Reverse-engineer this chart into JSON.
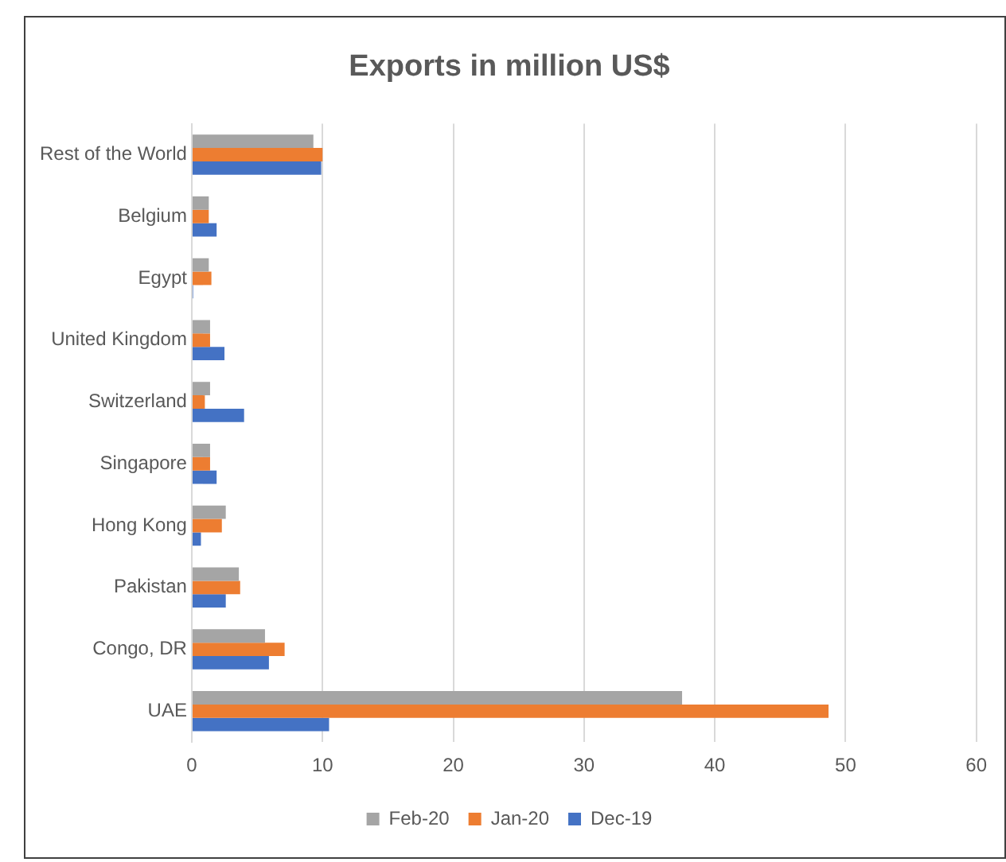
{
  "chart_data": {
    "type": "bar",
    "orientation": "horizontal",
    "title": "Exports in million US$",
    "categories": [
      "Rest of the World",
      "Belgium",
      "Egypt",
      "United Kingdom",
      "Switzerland",
      "Singapore",
      "Hong Kong",
      "Pakistan",
      "Congo, DR",
      "UAE"
    ],
    "series": [
      {
        "name": "Feb-20",
        "color": "#a5a5a5",
        "values": [
          9.3,
          1.3,
          1.3,
          1.4,
          1.4,
          1.4,
          2.6,
          3.6,
          5.6,
          37.5
        ]
      },
      {
        "name": "Jan-20",
        "color": "#ed7d31",
        "values": [
          10.0,
          1.3,
          1.5,
          1.4,
          1.0,
          1.4,
          2.3,
          3.7,
          7.1,
          48.7
        ]
      },
      {
        "name": "Dec-19",
        "color": "#4472c4",
        "values": [
          9.9,
          1.9,
          0.1,
          2.5,
          4.0,
          1.9,
          0.7,
          2.6,
          5.9,
          10.5
        ]
      }
    ],
    "xlim": [
      0,
      60
    ],
    "xticks": [
      0,
      10,
      20,
      30,
      40,
      50,
      60
    ],
    "grid": "x",
    "legend": "bottom"
  }
}
